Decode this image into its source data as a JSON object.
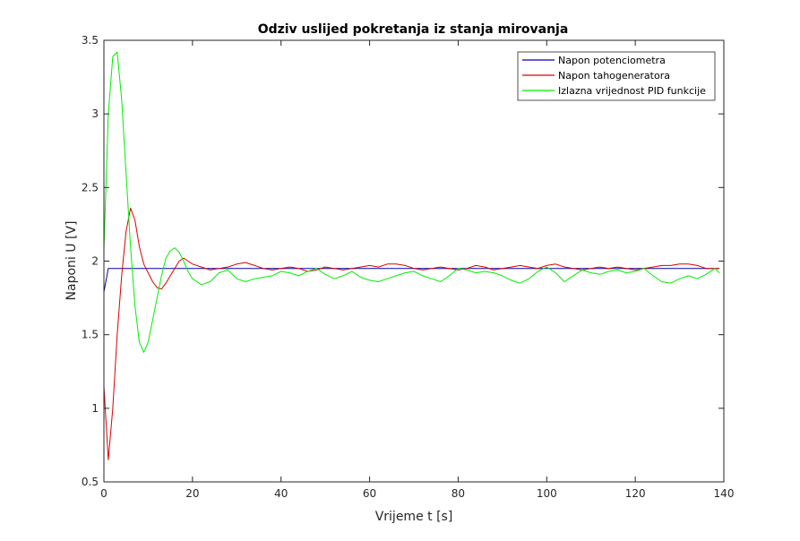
{
  "chart_data": {
    "type": "line",
    "title": "Odziv uslijed pokretanja iz stanja mirovanja",
    "xlabel": "Vrijeme t [s]",
    "ylabel": "Naponi U [V]",
    "xlim": [
      0,
      140
    ],
    "ylim": [
      0.5,
      3.5
    ],
    "xticks": [
      0,
      20,
      40,
      60,
      80,
      100,
      120,
      140
    ],
    "xtick_labels": [
      "0",
      "20",
      "40",
      "60",
      "80",
      "100",
      "120",
      "140"
    ],
    "yticks": [
      0.5,
      1,
      1.5,
      2,
      2.5,
      3,
      3.5
    ],
    "ytick_labels": [
      "0.5",
      "1",
      "1.5",
      "2",
      "2.5",
      "3",
      "3.5"
    ],
    "grid": false,
    "legend_position": "top-right",
    "series": [
      {
        "name": "Napon potenciometra",
        "color": "#0000aa",
        "x": [
          0,
          1,
          139
        ],
        "y": [
          1.79,
          1.95,
          1.95
        ]
      },
      {
        "name": "Napon tahogeneratora",
        "color": "#dd0000",
        "x": [
          0,
          1,
          2,
          3,
          4,
          5,
          6,
          7,
          8,
          9,
          10,
          11,
          12,
          13,
          14,
          15,
          16,
          17,
          18,
          19,
          20,
          22,
          24,
          26,
          28,
          30,
          32,
          34,
          36,
          38,
          40,
          42,
          44,
          46,
          48,
          50,
          52,
          54,
          56,
          58,
          60,
          62,
          64,
          66,
          68,
          70,
          72,
          74,
          76,
          78,
          80,
          82,
          84,
          86,
          88,
          90,
          92,
          94,
          96,
          98,
          100,
          102,
          104,
          106,
          108,
          110,
          112,
          114,
          116,
          118,
          120,
          122,
          124,
          126,
          128,
          130,
          132,
          134,
          136,
          138,
          139
        ],
        "y": [
          1.15,
          0.65,
          1.0,
          1.5,
          1.9,
          2.2,
          2.36,
          2.28,
          2.1,
          1.98,
          1.92,
          1.86,
          1.82,
          1.81,
          1.85,
          1.9,
          1.95,
          2.0,
          2.02,
          2.0,
          1.98,
          1.96,
          1.94,
          1.95,
          1.96,
          1.98,
          1.99,
          1.97,
          1.95,
          1.94,
          1.95,
          1.96,
          1.95,
          1.93,
          1.94,
          1.96,
          1.95,
          1.94,
          1.95,
          1.96,
          1.97,
          1.96,
          1.98,
          1.98,
          1.97,
          1.95,
          1.94,
          1.95,
          1.96,
          1.95,
          1.94,
          1.95,
          1.97,
          1.96,
          1.94,
          1.95,
          1.96,
          1.97,
          1.96,
          1.95,
          1.97,
          1.98,
          1.96,
          1.95,
          1.94,
          1.95,
          1.96,
          1.95,
          1.96,
          1.95,
          1.94,
          1.95,
          1.96,
          1.97,
          1.97,
          1.98,
          1.98,
          1.97,
          1.95,
          1.95,
          1.95
        ]
      },
      {
        "name": "Izlazna vrijednost PID funkcije",
        "color": "#00ee00",
        "x": [
          0,
          1,
          2,
          3,
          4,
          5,
          6,
          7,
          8,
          9,
          10,
          11,
          12,
          13,
          14,
          15,
          16,
          17,
          18,
          19,
          20,
          22,
          24,
          26,
          28,
          30,
          32,
          34,
          36,
          38,
          40,
          42,
          44,
          46,
          48,
          50,
          52,
          54,
          56,
          58,
          60,
          62,
          64,
          66,
          68,
          70,
          72,
          74,
          76,
          78,
          80,
          82,
          84,
          86,
          88,
          90,
          92,
          94,
          96,
          98,
          100,
          102,
          104,
          106,
          108,
          110,
          112,
          114,
          116,
          118,
          120,
          122,
          124,
          126,
          128,
          130,
          132,
          134,
          136,
          138,
          139
        ],
        "y": [
          2.08,
          3.0,
          3.39,
          3.42,
          3.1,
          2.6,
          2.1,
          1.7,
          1.45,
          1.38,
          1.45,
          1.6,
          1.75,
          1.9,
          2.02,
          2.07,
          2.09,
          2.06,
          2.0,
          1.93,
          1.88,
          1.84,
          1.86,
          1.92,
          1.94,
          1.88,
          1.86,
          1.88,
          1.89,
          1.9,
          1.93,
          1.92,
          1.9,
          1.93,
          1.95,
          1.91,
          1.88,
          1.9,
          1.93,
          1.89,
          1.87,
          1.86,
          1.88,
          1.9,
          1.92,
          1.93,
          1.9,
          1.88,
          1.86,
          1.9,
          1.95,
          1.94,
          1.92,
          1.93,
          1.92,
          1.9,
          1.87,
          1.85,
          1.88,
          1.93,
          1.96,
          1.92,
          1.86,
          1.9,
          1.94,
          1.92,
          1.91,
          1.93,
          1.94,
          1.92,
          1.93,
          1.95,
          1.9,
          1.86,
          1.85,
          1.88,
          1.9,
          1.88,
          1.91,
          1.95,
          1.92
        ]
      }
    ]
  }
}
